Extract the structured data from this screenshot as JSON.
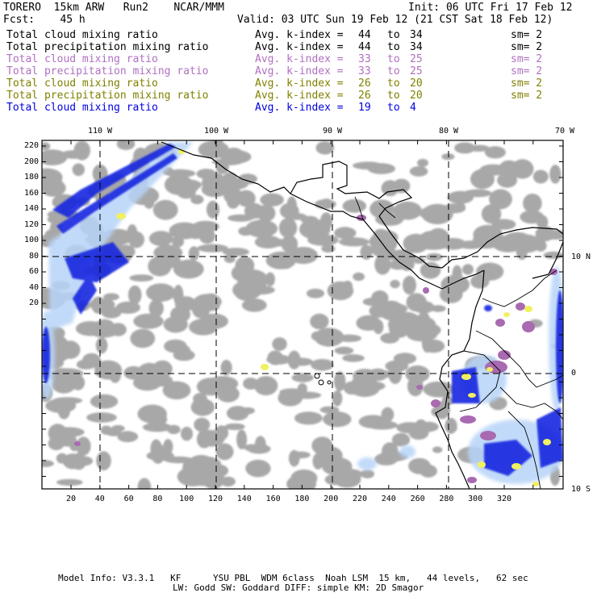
{
  "header": {
    "model_line": "TORERO  15km ARW   Run2    NCAR/MMM",
    "init": "Init: 06 UTC Fri 17 Feb 12",
    "fcst_label": "Fcst:    45 h",
    "valid": "Valid: 03 UTC Sun 19 Feb 12 (21 CST Sat 18 Feb 12)"
  },
  "legend": [
    {
      "field": "Total cloud mixing ratio",
      "avg": "Avg. k-index =",
      "a": "44",
      "to": "to",
      "b": "34",
      "sm": "sm= 2",
      "color": "#000000"
    },
    {
      "field": "Total precipitation mixing ratio",
      "avg": "Avg. k-index =",
      "a": "44",
      "to": "to",
      "b": "34",
      "sm": "sm= 2",
      "color": "#000000"
    },
    {
      "field": "Total cloud mixing ratio",
      "avg": "Avg. k-index =",
      "a": "33",
      "to": "to",
      "b": "25",
      "sm": "sm= 2",
      "color": "#b070c0"
    },
    {
      "field": "Total precipitation mixing ratio",
      "avg": "Avg. k-index =",
      "a": "33",
      "to": "to",
      "b": "25",
      "sm": "sm= 2",
      "color": "#b070c0"
    },
    {
      "field": "Total cloud mixing ratio",
      "avg": "Avg. k-index =",
      "a": "26",
      "to": "to",
      "b": "20",
      "sm": "sm= 2",
      "color": "#808000"
    },
    {
      "field": "Total precipitation mixing ratio",
      "avg": "Avg. k-index =",
      "a": "26",
      "to": "to",
      "b": "20",
      "sm": "sm= 2",
      "color": "#808000"
    },
    {
      "field": "Total cloud mixing ratio",
      "avg": "Avg. k-index =",
      "a": "19",
      "to": "to",
      "b": "4",
      "sm": "",
      "color": "#0000e0"
    }
  ],
  "map": {
    "lon_labels": [
      "110 W",
      "100 W",
      "90 W",
      "80 W",
      "70 W"
    ],
    "lat_labels": [
      "10 N",
      "0",
      "10 S"
    ],
    "y_ticks": [
      "220",
      "200",
      "180",
      "160",
      "140",
      "120",
      "100",
      "80",
      "60",
      "40",
      "20"
    ],
    "x_ticks": [
      "20",
      "40",
      "60",
      "80",
      "100",
      "120",
      "140",
      "160",
      "180",
      "200",
      "220",
      "240",
      "260",
      "280",
      "300",
      "320"
    ],
    "colors": {
      "gray": "#a8a8a8",
      "purple": "#a86ab0",
      "yellow": "#f0f060",
      "blue_dark": "#1020e0",
      "blue_light": "#a8c8f8",
      "coast": "#000000"
    }
  },
  "footer": {
    "line1": "Model Info: V3.3.1   KF      YSU PBL  WDM 6class  Noah LSM  15 km,   44 levels,   62 sec",
    "line2": "LW: Godd SW: Goddard DIFF: simple KM: 2D Smagor"
  }
}
